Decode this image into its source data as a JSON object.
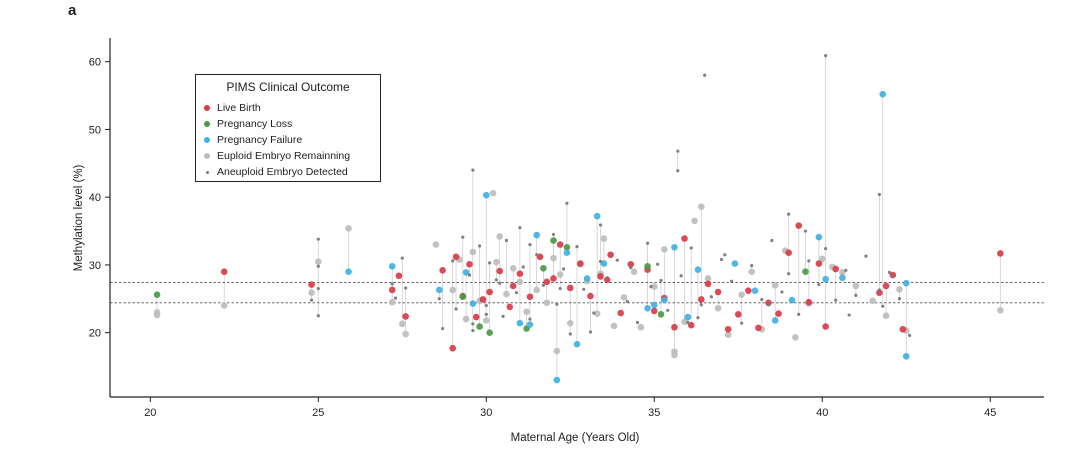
{
  "panel_label": "a",
  "chart_data": {
    "type": "scatter",
    "xlabel": "Maternal Age (Years Old)",
    "ylabel": "Methylation level (%)",
    "xlim": [
      18.8,
      46.6
    ],
    "ylim": [
      10.5,
      63.5
    ],
    "x_ticks": [
      20,
      25,
      30,
      35,
      40,
      45
    ],
    "y_ticks": [
      20,
      30,
      40,
      50,
      60
    ],
    "x_tick_labels": [
      "20",
      "25",
      "30",
      "35",
      "40",
      "45"
    ],
    "y_tick_labels": [
      "20",
      "30",
      "40",
      "50",
      "60"
    ],
    "grid": false,
    "reference_lines": [
      27.4,
      24.4
    ],
    "legend": {
      "title": "PIMS Clinical Outcome",
      "placement": "top-left",
      "entries": [
        {
          "label": "Live Birth",
          "color": "#d93b4a",
          "marker": "large"
        },
        {
          "label": "Pregnancy Loss",
          "color": "#4a9a48",
          "marker": "large"
        },
        {
          "label": "Pregnancy Failure",
          "color": "#3fb1e3",
          "marker": "large"
        },
        {
          "label": "Euploid Embryo Remainning",
          "color": "#bdbdbd",
          "marker": "large"
        },
        {
          "label": "Aneuploid Embryo Detected",
          "color": "#7a7a7a",
          "marker": "small"
        }
      ]
    },
    "series": [
      {
        "name": "Live Birth",
        "color": "#d93b4a",
        "size": "large",
        "x": [
          22.2,
          24.8,
          27.2,
          27.4,
          27.6,
          28.7,
          29.0,
          29.3,
          29.5,
          29.7,
          29.9,
          30.1,
          30.4,
          30.7,
          31.0,
          31.3,
          31.6,
          31.8,
          32.0,
          32.2,
          32.5,
          32.8,
          33.1,
          33.4,
          33.7,
          34.0,
          34.3,
          34.8,
          35.0,
          35.3,
          35.6,
          35.9,
          36.1,
          36.4,
          36.6,
          36.9,
          37.2,
          37.5,
          37.8,
          38.1,
          38.4,
          38.7,
          39.0,
          39.3,
          39.6,
          39.9,
          40.1,
          40.4,
          41.7,
          41.9,
          42.1,
          42.4,
          45.3,
          29.1,
          30.8,
          33.6
        ],
        "y": [
          29.0,
          27.1,
          26.3,
          28.4,
          22.4,
          29.2,
          17.7,
          25.4,
          30.1,
          22.3,
          24.9,
          26.0,
          29.1,
          23.8,
          28.7,
          25.3,
          31.2,
          27.5,
          28.0,
          33.0,
          26.6,
          30.2,
          25.4,
          28.3,
          31.5,
          22.9,
          30.1,
          29.3,
          23.2,
          25.1,
          20.8,
          33.9,
          21.1,
          24.9,
          27.2,
          26.0,
          20.5,
          22.7,
          26.2,
          20.7,
          24.4,
          22.8,
          31.8,
          35.8,
          24.5,
          30.2,
          20.9,
          29.4,
          25.9,
          26.9,
          28.5,
          20.5,
          31.7,
          31.2,
          26.9,
          27.8
        ]
      },
      {
        "name": "Pregnancy Loss",
        "color": "#4a9a48",
        "size": "large",
        "x": [
          20.2,
          29.3,
          29.8,
          30.1,
          31.2,
          31.7,
          32.0,
          32.4,
          34.8,
          35.2,
          39.5
        ],
        "y": [
          25.6,
          25.3,
          20.9,
          20.0,
          20.6,
          29.5,
          33.6,
          32.6,
          29.8,
          22.7,
          29.0
        ],
        "z": []
      },
      {
        "name": "Pregnancy Failure",
        "color": "#3fb1e3",
        "size": "large",
        "x": [
          25.9,
          27.2,
          28.6,
          29.4,
          29.6,
          30.0,
          31.3,
          31.5,
          32.1,
          32.4,
          32.7,
          33.0,
          33.3,
          33.5,
          35.3,
          35.6,
          36.0,
          36.3,
          37.4,
          38.0,
          38.6,
          39.1,
          39.9,
          40.6,
          41.8,
          42.5,
          42.5,
          31.0,
          34.8,
          35.0,
          40.1
        ],
        "y": [
          29.0,
          29.8,
          26.3,
          28.9,
          24.3,
          40.3,
          21.2,
          34.4,
          13.0,
          31.8,
          18.3,
          28.0,
          37.2,
          30.2,
          24.8,
          32.6,
          22.3,
          29.3,
          30.2,
          26.2,
          21.8,
          24.8,
          34.1,
          28.1,
          55.2,
          16.5,
          27.3,
          21.4,
          23.6,
          24.1,
          27.9
        ]
      },
      {
        "name": "Euploid Embryo Remainning",
        "color": "#bdbdbd",
        "size": "large",
        "x": [
          20.2,
          20.2,
          22.2,
          24.8,
          25.0,
          25.9,
          27.2,
          27.5,
          27.6,
          28.5,
          29.0,
          29.2,
          29.4,
          29.6,
          29.8,
          30.0,
          30.2,
          30.4,
          30.6,
          30.8,
          31.0,
          31.2,
          31.5,
          31.8,
          32.0,
          32.2,
          32.5,
          32.8,
          33.0,
          33.3,
          33.5,
          33.8,
          34.1,
          34.4,
          34.6,
          35.0,
          35.3,
          35.6,
          35.9,
          36.2,
          36.4,
          36.6,
          36.9,
          37.2,
          37.6,
          37.9,
          38.2,
          38.6,
          38.9,
          39.2,
          39.6,
          40.0,
          40.3,
          40.6,
          41.0,
          41.5,
          41.9,
          42.3,
          42.5,
          45.3,
          35.6,
          30.3,
          32.1,
          33.4
        ],
        "y": [
          23.0,
          22.6,
          24.0,
          25.9,
          30.5,
          35.4,
          24.5,
          21.3,
          19.8,
          33.0,
          26.3,
          30.8,
          22.0,
          31.9,
          24.7,
          21.8,
          40.6,
          34.2,
          25.7,
          29.5,
          27.5,
          23.1,
          26.3,
          24.4,
          31.0,
          28.6,
          21.4,
          30.1,
          27.6,
          22.8,
          33.9,
          21.0,
          25.2,
          29.0,
          20.8,
          26.8,
          32.3,
          16.7,
          21.6,
          36.5,
          38.6,
          28.0,
          23.6,
          19.7,
          25.6,
          29.0,
          20.5,
          27.0,
          32.1,
          19.3,
          24.3,
          30.9,
          29.7,
          28.9,
          26.9,
          24.7,
          22.5,
          26.4,
          20.3,
          23.3,
          17.2,
          30.4,
          17.3,
          28.7
        ]
      },
      {
        "name": "Aneuploid Embryo Detected",
        "color": "#7a7a7a",
        "size": "small",
        "x": [
          25.0,
          25.0,
          25.0,
          25.0,
          24.8,
          27.2,
          27.3,
          27.5,
          27.6,
          28.6,
          29.0,
          29.1,
          29.3,
          29.5,
          29.6,
          29.8,
          30.0,
          30.1,
          30.3,
          30.5,
          30.6,
          30.9,
          31.1,
          31.3,
          31.5,
          31.7,
          32.0,
          32.1,
          32.3,
          32.5,
          32.7,
          32.9,
          33.2,
          33.4,
          33.6,
          33.9,
          34.2,
          34.5,
          34.8,
          34.9,
          35.1,
          35.4,
          35.7,
          35.8,
          36.1,
          36.3,
          36.5,
          36.7,
          37.0,
          37.3,
          37.6,
          37.9,
          38.2,
          38.5,
          38.8,
          39.0,
          39.3,
          39.6,
          39.9,
          40.1,
          40.4,
          40.7,
          41.0,
          41.3,
          41.7,
          41.8,
          42.1,
          42.3,
          42.6,
          29.6,
          29.6,
          30.0,
          31.0,
          32.4,
          33.4,
          35.7,
          36.4,
          39.0,
          40.1,
          41.7,
          28.7,
          30.4,
          31.3,
          32.2,
          33.1,
          34.3,
          35.2,
          36.0,
          37.1,
          38.4,
          39.5,
          40.8,
          42.0
        ],
        "y": [
          33.8,
          29.8,
          22.5,
          26.5,
          24.8,
          27.2,
          25.1,
          31.0,
          26.6,
          25.0,
          30.6,
          23.5,
          34.1,
          28.5,
          21.3,
          32.8,
          24.0,
          30.3,
          27.8,
          22.4,
          33.6,
          25.9,
          29.7,
          22.0,
          31.5,
          27.0,
          34.5,
          24.2,
          29.4,
          19.8,
          32.7,
          26.4,
          22.9,
          35.9,
          28.1,
          30.7,
          24.6,
          21.5,
          33.2,
          26.8,
          30.1,
          23.3,
          46.8,
          28.4,
          32.5,
          22.2,
          58.0,
          25.3,
          30.8,
          27.6,
          21.4,
          29.9,
          24.9,
          33.6,
          26.0,
          37.5,
          22.7,
          30.6,
          27.1,
          60.9,
          24.8,
          29.2,
          25.5,
          31.3,
          40.4,
          23.9,
          28.3,
          25.0,
          19.6,
          44.0,
          20.3,
          22.7,
          35.5,
          39.1,
          30.5,
          43.9,
          24.1,
          28.7,
          32.4,
          26.3,
          20.6,
          27.3,
          33.0,
          26.5,
          20.1,
          29.6,
          27.7,
          21.5,
          31.5,
          24.1,
          35.0,
          22.6,
          28.9
        ]
      }
    ]
  }
}
